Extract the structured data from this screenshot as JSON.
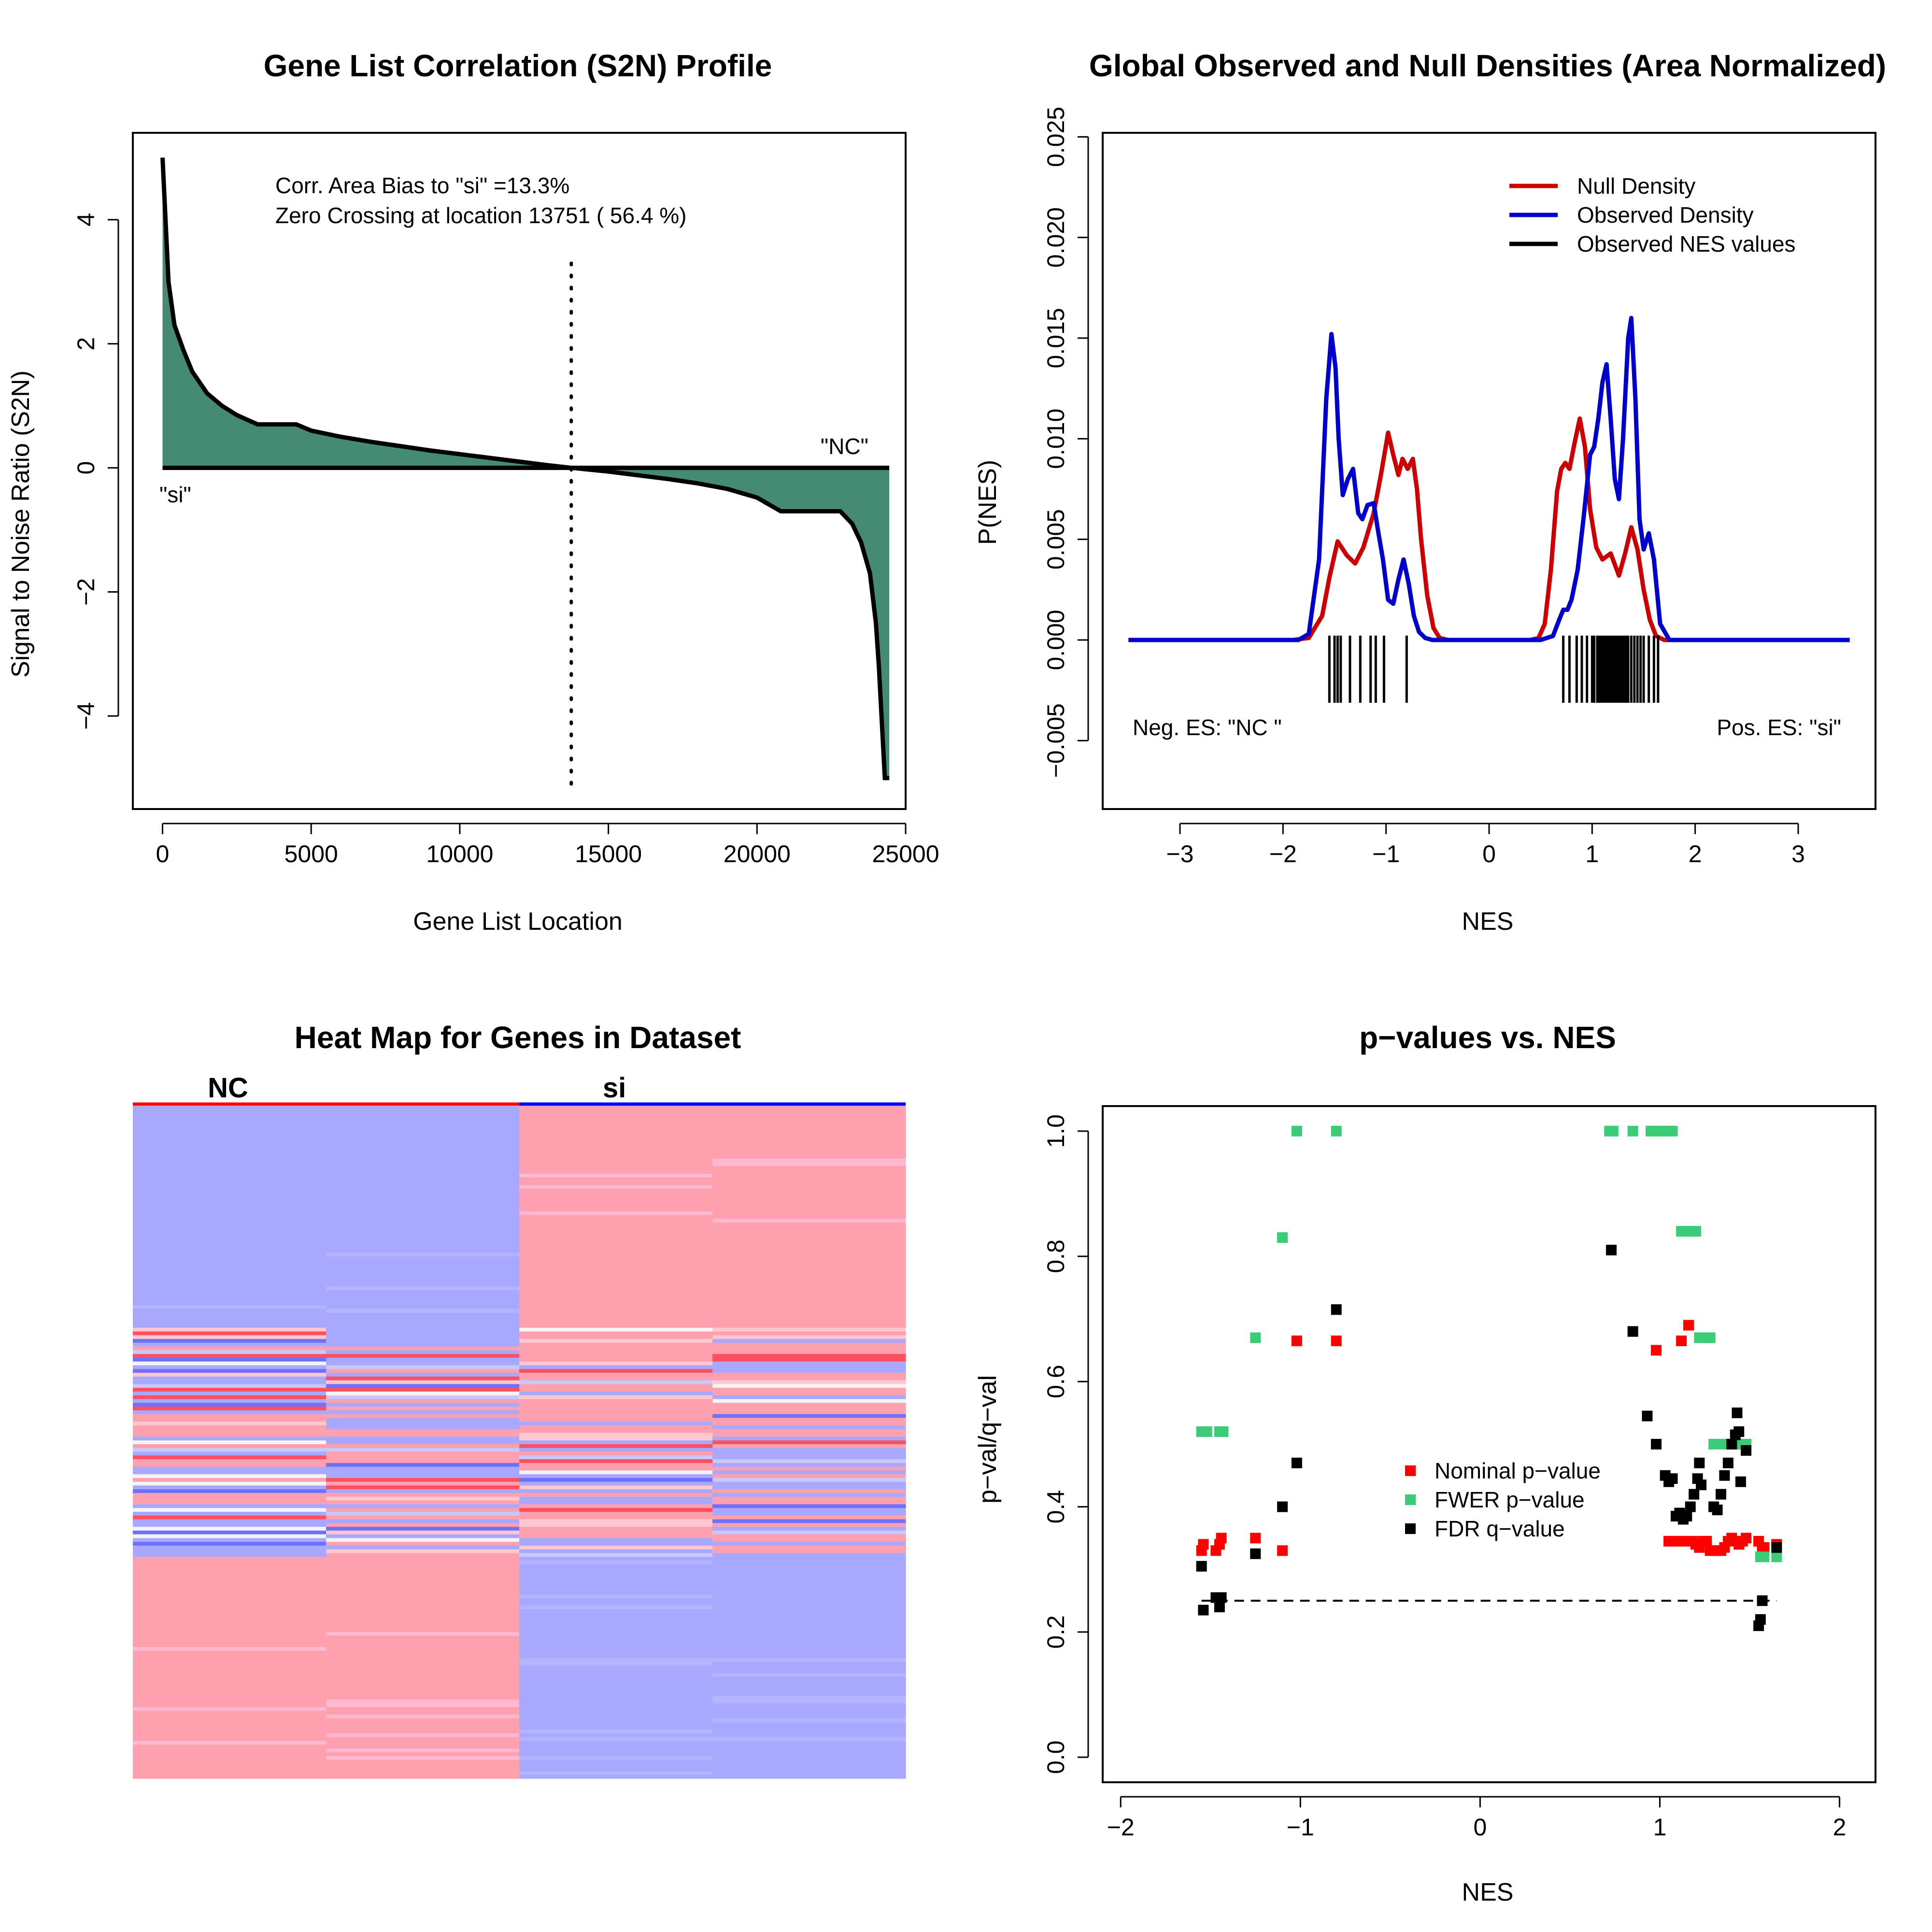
{
  "chart_data": [
    {
      "type": "area",
      "title": "Gene List Correlation (S2N) Profile",
      "xlabel": "Gene List Location",
      "ylabel": "Signal to Noise Ratio (S2N)",
      "xlim": [
        -1000,
        25000
      ],
      "ylim": [
        -5.5,
        5.4
      ],
      "xticks": [
        0,
        5000,
        10000,
        15000,
        20000,
        25000
      ],
      "yticks": [
        -4,
        -2,
        0,
        2,
        4
      ],
      "xtick_labels": [
        "0",
        "5000",
        "10000",
        "15000",
        "20000",
        "25000"
      ],
      "ytick_labels": [
        "−4",
        "−2",
        "0",
        "2",
        "4"
      ],
      "fill_color": "#458b74",
      "x": [
        0,
        100,
        200,
        400,
        700,
        1000,
        1500,
        2000,
        2500,
        3200,
        4500,
        5000,
        6000,
        7000,
        8000,
        9000,
        10000,
        11000,
        12000,
        13000,
        13751,
        15000,
        16000,
        17000,
        18000,
        19000,
        20000,
        20800,
        22800,
        23200,
        23500,
        23800,
        24000,
        24100,
        24200,
        24300,
        24450
      ],
      "values": [
        5.0,
        4.0,
        3.0,
        2.3,
        1.9,
        1.55,
        1.2,
        1.0,
        0.85,
        0.7,
        0.7,
        0.6,
        0.5,
        0.42,
        0.35,
        0.28,
        0.22,
        0.16,
        0.1,
        0.04,
        0.0,
        -0.06,
        -0.12,
        -0.18,
        -0.25,
        -0.34,
        -0.48,
        -0.7,
        -0.7,
        -0.9,
        -1.2,
        -1.7,
        -2.5,
        -3.2,
        -4.1,
        -5.0,
        -5.0
      ],
      "zero_crossing": 13751,
      "annotations": [
        "Corr. Area Bias to \"si\" =13.3%",
        "Zero Crossing at location  13751  ( 56.4  %)"
      ],
      "label_pos": "\"NC\"",
      "label_neg": "\"si\""
    },
    {
      "type": "line",
      "title": "Global Observed and Null Densities (Area Normalized)",
      "xlabel": "NES",
      "ylabel": "P(NES)",
      "xlim": [
        -3.75,
        3.75
      ],
      "ylim": [
        -0.0084,
        0.0252
      ],
      "xticks": [
        -3,
        -2,
        -1,
        0,
        1,
        2,
        3
      ],
      "yticks": [
        -0.005,
        0.0,
        0.005,
        0.01,
        0.015,
        0.02,
        0.025
      ],
      "xtick_labels": [
        "−3",
        "−2",
        "−1",
        "0",
        "1",
        "2",
        "3"
      ],
      "ytick_labels": [
        "−0.005",
        "0.000",
        "0.005",
        "0.010",
        "0.015",
        "0.020",
        "0.025"
      ],
      "legend_position": "top-right",
      "series": [
        {
          "name": "Null Density",
          "color": "#cc0000",
          "x": [
            -3.5,
            -1.9,
            -1.75,
            -1.62,
            -1.55,
            -1.47,
            -1.38,
            -1.3,
            -1.22,
            -1.12,
            -1.05,
            -0.98,
            -0.93,
            -0.88,
            -0.84,
            -0.79,
            -0.74,
            -0.7,
            -0.66,
            -0.6,
            -0.54,
            -0.48,
            -0.4,
            0.4,
            0.48,
            0.54,
            0.6,
            0.66,
            0.7,
            0.74,
            0.78,
            0.83,
            0.88,
            0.93,
            0.98,
            1.04,
            1.1,
            1.18,
            1.26,
            1.32,
            1.38,
            1.44,
            1.5,
            1.56,
            1.62,
            1.7,
            1.9,
            3.5
          ],
          "y": [
            0,
            0,
            0.0001,
            0.0012,
            0.0031,
            0.0049,
            0.0042,
            0.0038,
            0.0046,
            0.0063,
            0.0082,
            0.0103,
            0.0092,
            0.0082,
            0.009,
            0.0085,
            0.009,
            0.0075,
            0.005,
            0.0022,
            0.0006,
            0.0001,
            0,
            0,
            0.0001,
            0.0008,
            0.0035,
            0.0074,
            0.0085,
            0.0088,
            0.0085,
            0.0098,
            0.011,
            0.0096,
            0.0065,
            0.0046,
            0.004,
            0.0043,
            0.0032,
            0.0043,
            0.0056,
            0.0045,
            0.0025,
            0.001,
            0.0002,
            0,
            0,
            0
          ]
        },
        {
          "name": "Observed Density",
          "color": "#0000cc",
          "x": [
            -3.5,
            -1.85,
            -1.75,
            -1.65,
            -1.58,
            -1.53,
            -1.49,
            -1.46,
            -1.42,
            -1.37,
            -1.32,
            -1.27,
            -1.23,
            -1.18,
            -1.12,
            -1.08,
            -1.03,
            -0.98,
            -0.93,
            -0.88,
            -0.83,
            -0.78,
            -0.73,
            -0.68,
            -0.62,
            -0.55,
            -0.5,
            0.5,
            0.62,
            0.68,
            0.72,
            0.76,
            0.8,
            0.86,
            0.92,
            0.98,
            1.02,
            1.06,
            1.1,
            1.14,
            1.18,
            1.22,
            1.26,
            1.3,
            1.35,
            1.38,
            1.42,
            1.46,
            1.5,
            1.55,
            1.6,
            1.66,
            1.75,
            3.5
          ],
          "y": [
            0,
            0,
            0.0003,
            0.004,
            0.012,
            0.0152,
            0.0135,
            0.01,
            0.0072,
            0.008,
            0.0085,
            0.0063,
            0.006,
            0.0067,
            0.0068,
            0.0055,
            0.004,
            0.002,
            0.0018,
            0.003,
            0.004,
            0.0028,
            0.0012,
            0.0004,
            0.0001,
            0,
            0,
            0,
            0.0002,
            0.001,
            0.0015,
            0.0015,
            0.002,
            0.0035,
            0.0062,
            0.0092,
            0.0096,
            0.011,
            0.0128,
            0.0137,
            0.011,
            0.008,
            0.007,
            0.01,
            0.015,
            0.016,
            0.012,
            0.006,
            0.0045,
            0.0053,
            0.004,
            0.0008,
            0,
            0
          ]
        },
        {
          "name": "Observed NES values",
          "color": "#000000",
          "rug_x": [
            -1.55,
            -1.5,
            -1.47,
            -1.44,
            -1.35,
            -1.25,
            -1.15,
            -1.1,
            -1.02,
            -0.8,
            0.72,
            0.78,
            0.85,
            0.9,
            0.95,
            1.0,
            1.02,
            1.05,
            1.07,
            1.09,
            1.11,
            1.13,
            1.15,
            1.17,
            1.19,
            1.21,
            1.23,
            1.25,
            1.27,
            1.29,
            1.31,
            1.33,
            1.35,
            1.38,
            1.41,
            1.44,
            1.47,
            1.5,
            1.55,
            1.6,
            1.64
          ]
        }
      ],
      "annotations": [
        "Neg. ES: \"NC \"",
        "Pos. ES: \"si\""
      ]
    },
    {
      "type": "heatmap",
      "title": "Heat Map for Genes in Dataset",
      "columns": [
        "NC",
        "si"
      ],
      "column_colors": [
        "#ff0000",
        "#0000ff"
      ],
      "colors": {
        "high": "#ffa0ae",
        "low": "#a8a8ff",
        "mid": "#f4f4f4",
        "bright_red": "#ff5060",
        "bright_blue": "#7070ff"
      },
      "blocks": [
        {
          "fraction": 0.33,
          "pattern": [
            "low",
            "low",
            "high",
            "high"
          ]
        },
        {
          "fraction": 0.34,
          "pattern": [
            "mixed",
            "mixed",
            "mixed",
            "mixed"
          ]
        },
        {
          "fraction": 0.33,
          "pattern": [
            "high",
            "high",
            "low",
            "low"
          ]
        }
      ]
    },
    {
      "type": "scatter",
      "title": "p−values vs. NES",
      "xlabel": "NES",
      "ylabel": "p−val/q−val",
      "xlim": [
        -2.1,
        2.2
      ],
      "ylim": [
        -0.04,
        1.04
      ],
      "xticks": [
        -2,
        -1,
        0,
        1,
        2
      ],
      "yticks": [
        0.0,
        0.2,
        0.4,
        0.6,
        0.8,
        1.0
      ],
      "xtick_labels": [
        "−2",
        "−1",
        "0",
        "1",
        "2"
      ],
      "ytick_labels": [
        "0.0",
        "0.2",
        "0.4",
        "0.6",
        "0.8",
        "1.0"
      ],
      "fdr_threshold": 0.25,
      "legend_position": "center-right",
      "series": [
        {
          "name": "Nominal p−value",
          "color": "#ff0000",
          "x": [
            -1.55,
            -1.54,
            -1.47,
            -1.45,
            -1.44,
            -1.25,
            -1.1,
            -1.02,
            -0.8,
            0.98,
            1.05,
            1.07,
            1.1,
            1.12,
            1.14,
            1.16,
            1.18,
            1.2,
            1.22,
            1.24,
            1.26,
            1.28,
            1.3,
            1.32,
            1.34,
            1.36,
            1.38,
            1.4,
            1.42,
            1.44,
            1.46,
            1.48,
            1.55,
            1.57,
            1.58,
            1.65
          ],
          "y": [
            0.33,
            0.34,
            0.33,
            0.34,
            0.35,
            0.35,
            0.33,
            0.665,
            0.665,
            0.65,
            0.345,
            0.345,
            0.345,
            0.665,
            0.345,
            0.69,
            0.345,
            0.34,
            0.335,
            0.345,
            0.345,
            0.33,
            0.33,
            0.33,
            0.33,
            0.335,
            0.345,
            0.35,
            0.345,
            0.34,
            0.345,
            0.35,
            0.345,
            0.335,
            0.335,
            0.34
          ]
        },
        {
          "name": "FWER p−value",
          "color": "#3ccc78",
          "x": [
            -1.55,
            -1.52,
            -1.45,
            -1.43,
            -1.25,
            -1.1,
            -1.02,
            -0.8,
            0.72,
            0.74,
            0.85,
            0.95,
            0.97,
            0.99,
            1.01,
            1.03,
            1.05,
            1.07,
            1.12,
            1.14,
            1.16,
            1.18,
            1.2,
            1.22,
            1.25,
            1.28,
            1.3,
            1.32,
            1.34,
            1.36,
            1.38,
            1.4,
            1.42,
            1.44,
            1.46,
            1.48,
            1.56,
            1.58,
            1.65
          ],
          "y": [
            0.52,
            0.52,
            0.52,
            0.52,
            0.67,
            0.83,
            1.0,
            1.0,
            1.0,
            1.0,
            1.0,
            1.0,
            1.0,
            1.0,
            1.0,
            1.0,
            1.0,
            1.0,
            0.84,
            0.84,
            0.84,
            0.84,
            0.84,
            0.67,
            0.67,
            0.67,
            0.5,
            0.5,
            0.5,
            0.5,
            0.5,
            0.5,
            0.5,
            0.5,
            0.5,
            0.5,
            0.32,
            0.32,
            0.32
          ]
        },
        {
          "name": "FDR q−value",
          "color": "#000000",
          "x": [
            -1.55,
            -1.54,
            -1.47,
            -1.45,
            -1.44,
            -1.25,
            -1.1,
            -1.02,
            -0.8,
            0.73,
            0.85,
            0.93,
            0.98,
            1.03,
            1.05,
            1.07,
            1.09,
            1.11,
            1.13,
            1.15,
            1.17,
            1.19,
            1.21,
            1.22,
            1.23,
            1.3,
            1.32,
            1.34,
            1.36,
            1.38,
            1.4,
            1.42,
            1.43,
            1.44,
            1.45,
            1.48,
            1.55,
            1.56,
            1.57,
            1.65
          ],
          "y": [
            0.305,
            0.235,
            0.255,
            0.24,
            0.255,
            0.325,
            0.4,
            0.47,
            0.715,
            0.81,
            0.68,
            0.545,
            0.5,
            0.45,
            0.44,
            0.445,
            0.385,
            0.39,
            0.38,
            0.385,
            0.4,
            0.42,
            0.445,
            0.47,
            0.435,
            0.4,
            0.395,
            0.42,
            0.45,
            0.47,
            0.5,
            0.515,
            0.55,
            0.52,
            0.44,
            0.49,
            0.21,
            0.22,
            0.25,
            0.335
          ]
        }
      ]
    }
  ]
}
